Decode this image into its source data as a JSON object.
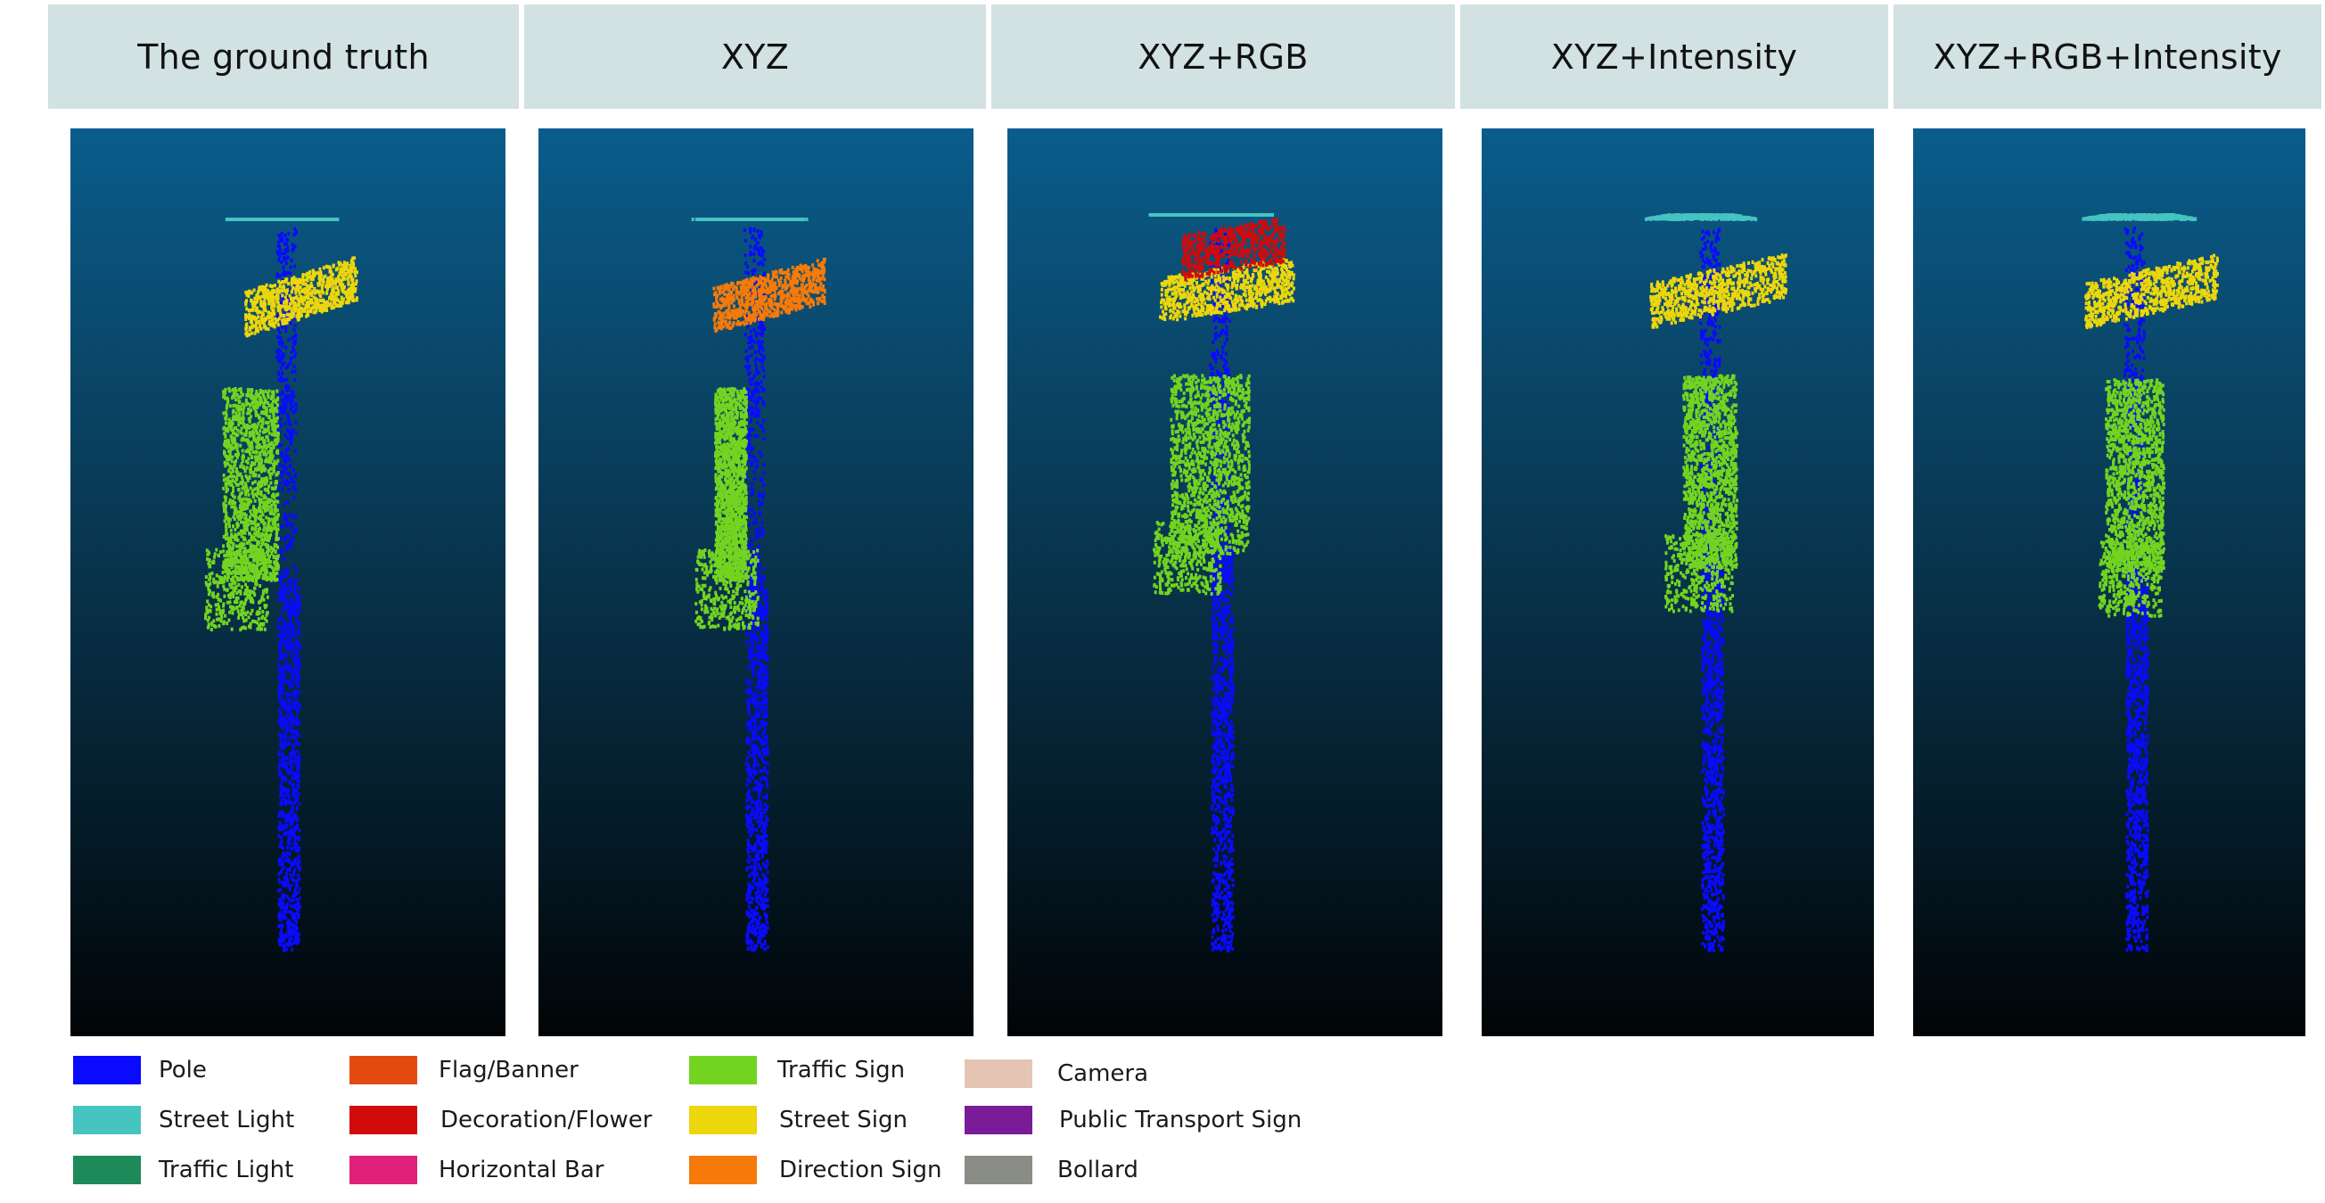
{
  "columns": [
    {
      "id": "ground-truth",
      "title": "The ground truth"
    },
    {
      "id": "xyz",
      "title": "XYZ"
    },
    {
      "id": "xyz-rgb",
      "title": "XYZ+RGB"
    },
    {
      "id": "xyz-intensity",
      "title": "XYZ+Intensity"
    },
    {
      "id": "xyz-rgb-intensity",
      "title": "XYZ+RGB+Intensity"
    }
  ],
  "legend": [
    {
      "label": "Pole",
      "color": "#0a0aff"
    },
    {
      "label": "Street Light",
      "color": "#45c4c0"
    },
    {
      "label": "Traffic Light",
      "color": "#1e8a5a"
    },
    {
      "label": "Flag/Banner",
      "color": "#e24a0f"
    },
    {
      "label": "Decoration/Flower",
      "color": "#d10a0a"
    },
    {
      "label": "Horizontal Bar",
      "color": "#e0207a"
    },
    {
      "label": "Traffic Sign",
      "color": "#72d420"
    },
    {
      "label": "Street Sign",
      "color": "#ecd60c"
    },
    {
      "label": "Direction Sign",
      "color": "#f57a0a"
    },
    {
      "label": "Camera",
      "color": "#e6c4b4"
    },
    {
      "label": "Public Transport Sign",
      "color": "#7a1c98"
    },
    {
      "label": "Bollard",
      "color": "#8a8c86"
    }
  ],
  "column_labels": {
    "ground-truth": {
      "street_light": "#45c4c0",
      "sign": "#ecd60c",
      "traffic_sign": "#72d420",
      "pole": "#0a0aff"
    },
    "xyz": {
      "street_light": "#45c4c0",
      "sign": "#f57a0a",
      "traffic_sign": "#72d420",
      "pole": "#0a0aff"
    },
    "xyz-rgb": {
      "street_light": "#45c4c0",
      "sign": "#ecd60c",
      "sign_top": "#d10a0a",
      "traffic_sign": "#72d420",
      "pole": "#0a0aff"
    },
    "xyz-intensity": {
      "street_light": "#45c4c0",
      "sign": "#ecd60c",
      "traffic_sign": "#72d420",
      "pole": "#0a0aff"
    },
    "xyz-rgb-intensity": {
      "street_light": "#45c4c0",
      "sign": "#ecd60c",
      "traffic_sign": "#72d420",
      "pole": "#0a0aff"
    }
  }
}
